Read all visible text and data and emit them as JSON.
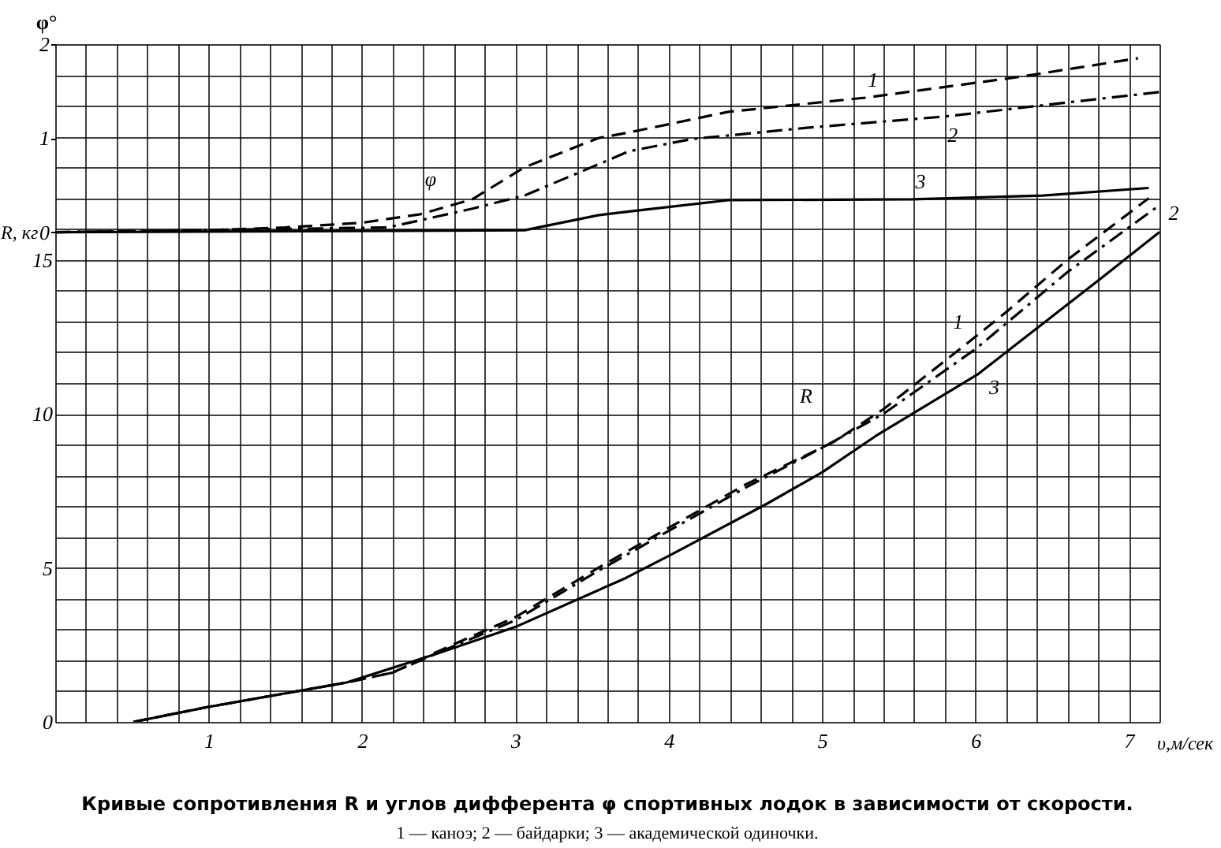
{
  "chart_data": {
    "type": "line",
    "title": "Кривые сопротивления R и углов дифферента φ спортивных лодок в зависимости от скорости.",
    "subtitle": "1 — каноэ; 2 — байдарки; 3 — академической одиночки.",
    "xlabel": "υ,м/сек",
    "ylabel": "R, кг",
    "y2label": "φ°",
    "xlim": [
      0,
      7.2
    ],
    "ylim": [
      0,
      22
    ],
    "y2lim": [
      -5.21,
      2
    ],
    "xticks": [
      {
        "value": 0,
        "label": null
      },
      {
        "value": 0.2,
        "label": null
      },
      {
        "value": 0.4,
        "label": null
      },
      {
        "value": 0.6,
        "label": null
      },
      {
        "value": 0.8,
        "label": null
      },
      1,
      {
        "value": 1.2,
        "label": null
      },
      {
        "value": 1.4,
        "label": null
      },
      {
        "value": 1.6,
        "label": null
      },
      {
        "value": 1.8,
        "label": null
      },
      2,
      {
        "value": 2.2,
        "label": null
      },
      {
        "value": 2.4,
        "label": null
      },
      {
        "value": 2.6,
        "label": null
      },
      {
        "value": 2.8,
        "label": null
      },
      3,
      {
        "value": 3.2,
        "label": null
      },
      {
        "value": 3.4,
        "label": null
      },
      {
        "value": 3.6,
        "label": null
      },
      {
        "value": 3.8,
        "label": null
      },
      4,
      {
        "value": 4.2,
        "label": null
      },
      {
        "value": 4.4,
        "label": null
      },
      {
        "value": 4.6,
        "label": null
      },
      {
        "value": 4.8,
        "label": null
      },
      5,
      {
        "value": 5.2,
        "label": null
      },
      {
        "value": 5.4,
        "label": null
      },
      {
        "value": 5.6,
        "label": null
      },
      {
        "value": 5.8,
        "label": null
      },
      6,
      {
        "value": 6.2,
        "label": null
      },
      {
        "value": 6.4,
        "label": null
      },
      {
        "value": 6.6,
        "label": null
      },
      {
        "value": 6.8,
        "label": null
      },
      7,
      {
        "value": 7.2,
        "label": null
      }
    ],
    "yticks": [
      0,
      {
        "value": 1,
        "label": null
      },
      {
        "value": 2,
        "label": null
      },
      {
        "value": 3,
        "label": null
      },
      {
        "value": 4,
        "label": null
      },
      5,
      {
        "value": 6,
        "label": null
      },
      {
        "value": 7,
        "label": null
      },
      {
        "value": 8,
        "label": null
      },
      {
        "value": 9,
        "label": null
      },
      10,
      {
        "value": 11,
        "label": null
      },
      {
        "value": 12,
        "label": null
      },
      {
        "value": 13,
        "label": null
      },
      {
        "value": 14,
        "label": null
      },
      15,
      {
        "value": 16,
        "label": null
      },
      {
        "value": 17,
        "label": null
      },
      {
        "value": 18,
        "label": null
      },
      {
        "value": 19,
        "label": null
      },
      {
        "value": 20,
        "label": null
      },
      {
        "value": 21,
        "label": null
      },
      {
        "value": 22,
        "label": null
      }
    ],
    "y2ticks": [
      0,
      1,
      2
    ],
    "grid": true,
    "series": [
      {
        "name": "1",
        "color": "#000000",
        "line_style": "dashed",
        "x": [
          0.51,
          0.97,
          1.9,
          2.2,
          2.5,
          3.0,
          3.54,
          4.0,
          4.5,
          5.08,
          5.4,
          6.0,
          6.2,
          6.6,
          7.13
        ],
        "values": [
          0,
          0.46,
          1.28,
          1.6,
          2.3,
          3.4,
          5.0,
          6.3,
          7.7,
          9.1,
          10.15,
          12.5,
          13.3,
          15.0,
          17.0
        ]
      },
      {
        "name": "2",
        "color": "#000000",
        "line_style": "dashdot",
        "x": [
          0.51,
          0.97,
          1.9,
          2.2,
          2.5,
          3.0,
          3.54,
          4.0,
          4.5,
          5.0,
          5.4,
          6.0,
          6.6,
          7.18
        ],
        "values": [
          0,
          0.46,
          1.28,
          1.6,
          2.25,
          3.3,
          4.9,
          6.2,
          7.6,
          8.9,
          10.0,
          12.1,
          14.6,
          16.7
        ]
      },
      {
        "name": "3",
        "color": "#000000",
        "line_style": "solid",
        "x": [
          0.51,
          0.97,
          1.9,
          2.48,
          3.0,
          3.72,
          4.02,
          4.64,
          5.0,
          5.35,
          6.02,
          6.82,
          7.2
        ],
        "values": [
          0,
          0.46,
          1.28,
          2.2,
          3.08,
          4.67,
          5.44,
          7.08,
          8.1,
          9.28,
          11.3,
          14.4,
          15.9
        ]
      },
      {
        "name": "1",
        "color": "#000000",
        "line_style": "dashed",
        "axis": "y2",
        "x": [
          0,
          1.0,
          1.5,
          2.0,
          2.38,
          2.72,
          3.06,
          3.54,
          3.74,
          4.39,
          5.28,
          6.28,
          7.06
        ],
        "values": [
          0,
          0.02,
          0.05,
          0.1,
          0.19,
          0.35,
          0.69,
          1.0,
          1.06,
          1.28,
          1.43,
          1.65,
          1.85
        ]
      },
      {
        "name": "2",
        "color": "#000000",
        "line_style": "dashdot",
        "axis": "y2",
        "x": [
          0,
          2.17,
          2.72,
          3.06,
          3.54,
          3.74,
          4.15,
          4.9,
          5.8,
          6.6,
          7.2
        ],
        "values": [
          0,
          0.05,
          0.25,
          0.39,
          0.72,
          0.86,
          0.99,
          1.11,
          1.23,
          1.38,
          1.49
        ]
      },
      {
        "name": "3",
        "color": "#000000",
        "line_style": "solid",
        "axis": "y2",
        "x": [
          0,
          3.06,
          3.54,
          3.74,
          4.39,
          5.59,
          6.44,
          7.13
        ],
        "values": [
          0,
          0.02,
          0.18,
          0.22,
          0.34,
          0.35,
          0.39,
          0.47
        ]
      }
    ],
    "annotations": [
      "φ",
      "R"
    ]
  }
}
